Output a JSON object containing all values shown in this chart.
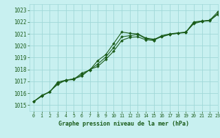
{
  "title": "Graphe pression niveau de la mer (hPa)",
  "background_color": "#c8f0f0",
  "grid_color": "#a0d8d8",
  "line_color": "#1a5c1a",
  "xlim": [
    -0.5,
    23
  ],
  "ylim": [
    1014.5,
    1023.5
  ],
  "yticks": [
    1015,
    1016,
    1017,
    1018,
    1019,
    1020,
    1021,
    1022,
    1023
  ],
  "xticks": [
    0,
    1,
    2,
    3,
    4,
    5,
    6,
    7,
    8,
    9,
    10,
    11,
    12,
    13,
    14,
    15,
    16,
    17,
    18,
    19,
    20,
    21,
    22,
    23
  ],
  "hours": [
    0,
    1,
    2,
    3,
    4,
    5,
    6,
    7,
    8,
    9,
    10,
    11,
    12,
    13,
    14,
    15,
    16,
    17,
    18,
    19,
    20,
    21,
    22,
    23
  ],
  "series1": [
    1015.3,
    1015.8,
    1016.1,
    1016.95,
    1017.1,
    1017.15,
    1017.7,
    1017.95,
    1018.75,
    1019.25,
    1020.2,
    1021.15,
    1021.05,
    1021.0,
    1020.65,
    1020.55,
    1020.75,
    1020.95,
    1021.05,
    1021.15,
    1021.85,
    1022.05,
    1022.15,
    1022.85
  ],
  "series2": [
    1015.3,
    1015.75,
    1016.15,
    1016.75,
    1017.1,
    1017.2,
    1017.45,
    1018.0,
    1018.25,
    1018.85,
    1019.55,
    1020.45,
    1020.7,
    1020.75,
    1020.5,
    1020.45,
    1020.8,
    1020.95,
    1021.05,
    1021.1,
    1021.95,
    1022.05,
    1022.1,
    1022.65
  ],
  "series3": [
    1015.3,
    1015.82,
    1016.12,
    1016.85,
    1017.08,
    1017.22,
    1017.55,
    1017.98,
    1018.45,
    1019.05,
    1019.85,
    1020.75,
    1020.85,
    1020.95,
    1020.6,
    1020.5,
    1020.85,
    1021.0,
    1021.08,
    1021.14,
    1022.0,
    1022.08,
    1022.14,
    1022.7
  ]
}
